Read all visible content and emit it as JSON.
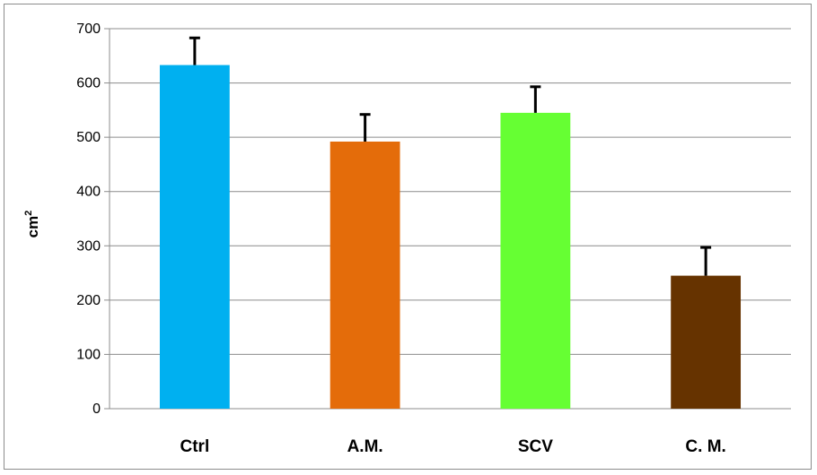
{
  "chart_data": {
    "type": "bar",
    "title": "",
    "xlabel": "",
    "ylabel": "cm",
    "ylabel_superscript": "2",
    "ylim": [
      0,
      700
    ],
    "yticks": [
      0,
      100,
      200,
      300,
      400,
      500,
      600,
      700
    ],
    "grid": true,
    "legend": "none",
    "categories": [
      "Ctrl",
      "A.M.",
      "SCV",
      "C. M."
    ],
    "values": [
      633,
      492,
      545,
      245
    ],
    "error_upper": [
      50,
      50,
      48,
      52
    ],
    "colors": [
      "#00b0f0",
      "#e46c0a",
      "#66ff33",
      "#663300"
    ],
    "error_bar_color": "#000000",
    "grid_color": "#8c8c8c"
  }
}
